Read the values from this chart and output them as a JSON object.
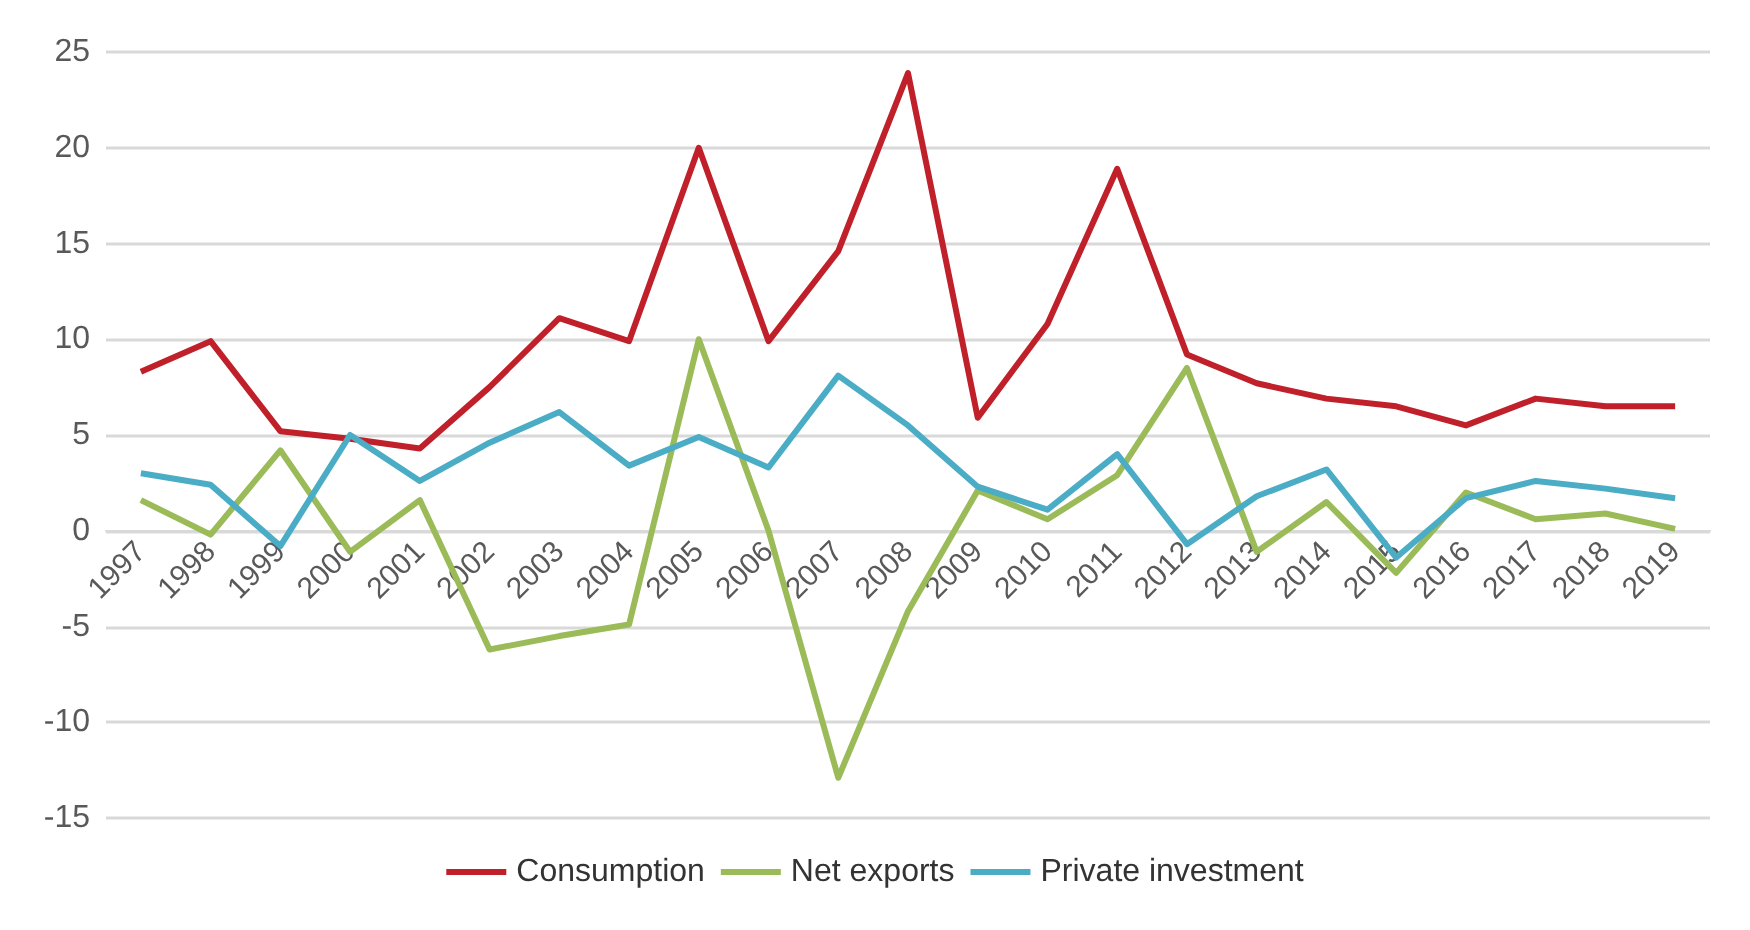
{
  "chart_data": {
    "type": "line",
    "categories": [
      "1997",
      "1998",
      "1999",
      "2000",
      "2001",
      "2002",
      "2003",
      "2004",
      "2005",
      "2006",
      "2007",
      "2008",
      "2009",
      "2010",
      "2011",
      "2012",
      "2013",
      "2014",
      "2015",
      "2016",
      "2017",
      "2018",
      "2019"
    ],
    "series": [
      {
        "name": "Consumption",
        "color": "#c0202a",
        "values": [
          8.3,
          9.9,
          5.2,
          4.8,
          4.3,
          7.5,
          11.1,
          9.9,
          20,
          9.9,
          14.6,
          23.9,
          5.9,
          10.8,
          18.9,
          9.2,
          7.7,
          6.9,
          6.5,
          5.5,
          6.9,
          6.5,
          6.5
        ]
      },
      {
        "name": "Net exports",
        "color": "#9bbb59",
        "values": [
          1.6,
          -0.2,
          4.2,
          -1.1,
          1.6,
          -6.2,
          -5.5,
          -4.9,
          10,
          0,
          -12.9,
          -4.2,
          2.1,
          0.6,
          2.9,
          8.5,
          -1.1,
          1.5,
          -2.2,
          2.0,
          0.6,
          0.9,
          0.1
        ]
      },
      {
        "name": "Private investment",
        "color": "#4bacc6",
        "values": [
          3.0,
          2.4,
          -0.8,
          5.0,
          2.6,
          4.6,
          6.2,
          3.4,
          4.9,
          3.3,
          8.1,
          5.5,
          2.3,
          1.1,
          4.0,
          -0.7,
          1.8,
          3.2,
          -1.4,
          1.7,
          2.6,
          2.2,
          1.7
        ]
      }
    ],
    "ylim": [
      -15,
      25
    ],
    "yticks": [
      -15,
      -10,
      -5,
      0,
      5,
      10,
      15,
      20,
      25
    ],
    "grid": "y",
    "legend": "bottom",
    "marker": "none",
    "line_style": "solid"
  }
}
